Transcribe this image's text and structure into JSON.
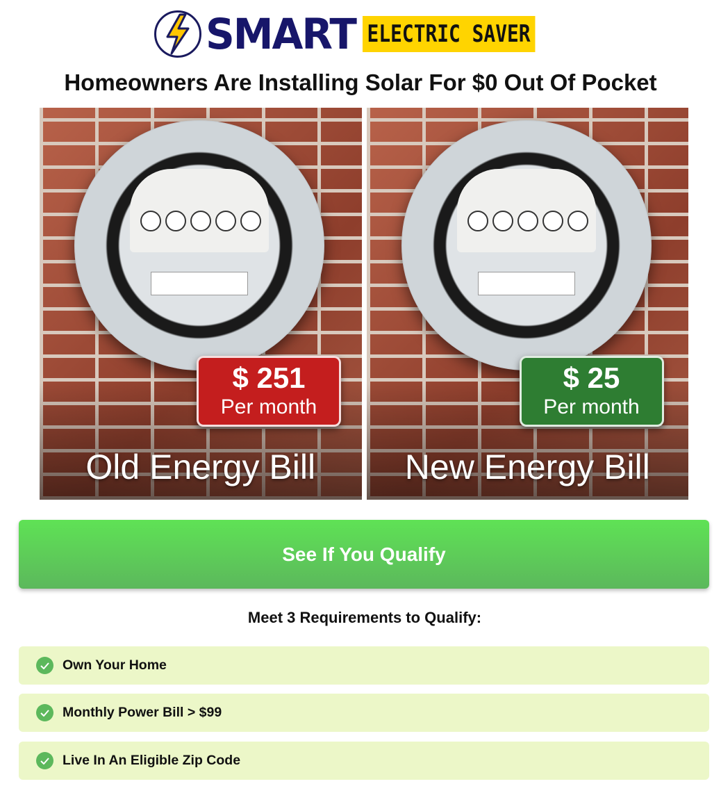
{
  "logo": {
    "brand": "SMART",
    "tagline": "ELECTRIC SAVER",
    "colors": {
      "navy": "#17166a",
      "yellow": "#ffd400"
    }
  },
  "headline": "Homeowners Are Installing Solar For $0 Out Of Pocket",
  "hero": {
    "old": {
      "amount": "$ 251",
      "period": "Per month",
      "caption": "Old Energy Bill",
      "color": "#c41e1e"
    },
    "new": {
      "amount": "$ 25",
      "period": "Per month",
      "caption": "New Energy Bill",
      "color": "#2e7d32"
    }
  },
  "cta": {
    "label": "See If You Qualify",
    "color": "#5fd656"
  },
  "requirements": {
    "title": "Meet 3 Requirements to Qualify:",
    "items": [
      {
        "label": "Own Your Home",
        "icon": "check-circle-icon"
      },
      {
        "label": "Monthly Power Bill > $99",
        "icon": "check-circle-icon"
      },
      {
        "label": "Live In An Eligible Zip Code",
        "icon": "check-circle-icon"
      }
    ]
  }
}
